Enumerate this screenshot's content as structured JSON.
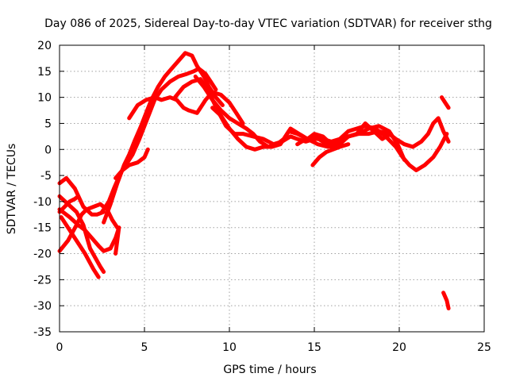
{
  "chart_data": {
    "type": "line",
    "title": "Day 086 of 2025, Sidereal Day-to-day VTEC variation (SDTVAR) for receiver sthg",
    "xlabel": "GPS time / hours",
    "ylabel": "SDTVAR / TECUs",
    "xlim": [
      0,
      25
    ],
    "ylim": [
      -35,
      20
    ],
    "xticks": [
      "0",
      "5",
      "10",
      "15",
      "20",
      "25"
    ],
    "yticks": [
      "20",
      "15",
      "10",
      "5",
      "0",
      "-5",
      "-10",
      "-15",
      "-20",
      "-25",
      "-30",
      "-35"
    ],
    "grid": true,
    "legend": "none",
    "series_color": "#ff0000",
    "series": [
      {
        "name": "trace-1",
        "x": [
          0.0,
          0.4,
          0.9,
          1.4,
          1.9,
          2.2,
          2.6
        ],
        "y": [
          -6.5,
          -5.5,
          -7.5,
          -11.0,
          -12.5,
          -12.5,
          -12.0
        ]
      },
      {
        "name": "trace-2",
        "x": [
          0.0,
          0.5,
          1.0,
          1.4,
          1.8,
          2.4,
          2.6
        ],
        "y": [
          -9.0,
          -10.5,
          -12.0,
          -14.5,
          -19.0,
          -22.5,
          -23.5
        ]
      },
      {
        "name": "trace-3",
        "x": [
          0.1,
          0.5,
          1.0,
          1.5,
          2.0,
          2.3
        ],
        "y": [
          -13.0,
          -15.0,
          -17.5,
          -20.0,
          -23.0,
          -24.5
        ]
      },
      {
        "name": "trace-4",
        "x": [
          0.0,
          0.5,
          1.0,
          1.3,
          1.6,
          2.0,
          2.4,
          2.8,
          3.1,
          3.4
        ],
        "y": [
          -19.5,
          -17.5,
          -14.5,
          -12.5,
          -11.5,
          -11.0,
          -10.5,
          -11.5,
          -13.5,
          -15.0
        ]
      },
      {
        "name": "trace-5",
        "x": [
          0.0,
          0.6,
          1.1,
          1.5,
          1.9,
          2.3,
          2.6,
          3.0,
          3.3,
          3.5
        ],
        "y": [
          -11.5,
          -13.0,
          -14.5,
          -15.5,
          -17.0,
          -18.5,
          -19.5,
          -19.0,
          -17.0,
          -15.0
        ]
      },
      {
        "name": "trace-6",
        "x": [
          0.0,
          0.3,
          0.6,
          0.9,
          1.1
        ],
        "y": [
          -12.0,
          -11.0,
          -10.0,
          -9.5,
          -9.0
        ]
      },
      {
        "name": "trace-7",
        "x": [
          2.5,
          2.9,
          3.2,
          3.6,
          3.9,
          4.3,
          4.7,
          5.0,
          5.3,
          5.6,
          6.0,
          6.5,
          7.0,
          7.5,
          7.9,
          8.2,
          8.6,
          8.9,
          9.2
        ],
        "y": [
          -12.0,
          -10.0,
          -7.5,
          -4.5,
          -3.0,
          -1.0,
          2.0,
          4.5,
          7.0,
          9.5,
          11.5,
          13.0,
          14.0,
          14.5,
          15.0,
          15.5,
          14.5,
          13.0,
          11.5
        ]
      },
      {
        "name": "trace-8",
        "x": [
          2.6,
          3.0,
          3.4,
          3.8,
          4.1,
          4.4,
          4.8,
          5.1,
          5.4,
          5.8,
          6.2,
          6.6,
          7.0,
          7.4,
          7.8,
          8.1,
          8.5,
          8.8,
          9.2,
          9.6
        ],
        "y": [
          -14.0,
          -10.5,
          -6.5,
          -3.0,
          -1.0,
          1.5,
          4.5,
          7.0,
          9.5,
          12.0,
          14.0,
          15.5,
          17.0,
          18.5,
          18.0,
          16.0,
          14.0,
          12.0,
          10.0,
          8.5
        ]
      },
      {
        "name": "trace-9",
        "x": [
          4.1,
          4.6,
          5.1,
          5.6,
          6.0,
          6.5,
          6.9,
          7.3,
          7.6,
          8.1,
          8.6,
          9.0,
          9.5,
          10.0,
          10.4,
          10.8
        ],
        "y": [
          6.0,
          8.5,
          9.5,
          10.0,
          9.5,
          10.0,
          9.5,
          8.0,
          7.5,
          7.0,
          9.5,
          11.0,
          10.5,
          9.0,
          7.0,
          5.0
        ]
      },
      {
        "name": "trace-10",
        "x": [
          3.3,
          3.7,
          4.1,
          4.6,
          5.0,
          5.2
        ],
        "y": [
          -5.5,
          -4.0,
          -3.0,
          -2.5,
          -1.5,
          0.0
        ]
      },
      {
        "name": "trace-11",
        "x": [
          3.3,
          3.5
        ],
        "y": [
          -20.0,
          -15.0
        ]
      },
      {
        "name": "trace-12",
        "x": [
          6.8,
          7.3,
          7.8,
          8.3,
          8.8,
          9.3,
          9.8,
          10.3,
          10.8,
          11.4,
          12.0,
          12.6,
          13.1,
          13.6,
          14.0,
          14.5,
          15.0,
          15.5,
          16.0,
          16.5,
          17.0,
          17.6,
          18.2,
          18.8,
          19.4,
          19.8,
          20.3,
          20.8
        ],
        "y": [
          10.0,
          12.0,
          13.0,
          13.5,
          11.0,
          7.5,
          4.5,
          3.0,
          3.0,
          2.5,
          2.0,
          1.0,
          1.5,
          2.5,
          2.0,
          1.5,
          2.0,
          2.0,
          1.5,
          2.0,
          2.5,
          3.0,
          3.0,
          3.5,
          3.0,
          2.0,
          1.0,
          0.5
        ]
      },
      {
        "name": "trace-13",
        "x": [
          8.0,
          8.5,
          9.0,
          9.5,
          10.0,
          10.5,
          11.0,
          11.4,
          11.8,
          12.3,
          12.8,
          13.2,
          13.6,
          14.1,
          14.6,
          15.0,
          15.5,
          16.0,
          16.5,
          17.0,
          17.5,
          18.0,
          18.6,
          19.2,
          19.8,
          20.2,
          20.6,
          21.0,
          21.5,
          22.0,
          22.4,
          22.8
        ],
        "y": [
          14.0,
          12.0,
          9.5,
          7.5,
          6.0,
          5.0,
          4.0,
          3.0,
          1.5,
          0.5,
          1.0,
          2.0,
          4.0,
          3.0,
          2.0,
          3.0,
          2.5,
          1.0,
          2.0,
          3.5,
          4.0,
          4.5,
          4.0,
          2.5,
          0.5,
          -1.5,
          -3.0,
          -4.0,
          -3.0,
          -1.5,
          0.5,
          3.0
        ]
      },
      {
        "name": "trace-14",
        "x": [
          9.0,
          9.5,
          10.0,
          10.5,
          11.0,
          11.5,
          12.0,
          12.5,
          13.0,
          13.5,
          14.0,
          14.6,
          15.2,
          15.8,
          16.4,
          17.0,
          17.6,
          18.2,
          18.8,
          19.4,
          19.9,
          20.3
        ],
        "y": [
          8.0,
          6.5,
          4.0,
          2.0,
          0.5,
          0.0,
          0.5,
          0.5,
          1.0,
          3.5,
          3.0,
          2.0,
          1.0,
          0.5,
          1.0,
          2.5,
          3.0,
          4.0,
          4.5,
          3.5,
          1.0,
          -2.0
        ]
      },
      {
        "name": "trace-15",
        "x": [
          14.0,
          14.5,
          15.0,
          15.5,
          16.0,
          16.5,
          17.0,
          17.5,
          18.0,
          18.5,
          19.0,
          19.5
        ],
        "y": [
          1.0,
          2.0,
          2.5,
          1.5,
          0.5,
          1.0,
          2.5,
          3.0,
          5.0,
          3.5,
          2.0,
          3.0
        ]
      },
      {
        "name": "trace-16",
        "x": [
          14.9,
          15.3,
          15.7,
          16.1,
          16.5,
          17.0
        ],
        "y": [
          -3.0,
          -1.5,
          -0.5,
          0.0,
          0.5,
          1.0
        ]
      },
      {
        "name": "trace-17",
        "x": [
          20.8,
          21.3,
          21.7,
          22.0,
          22.3,
          22.6,
          22.9
        ],
        "y": [
          0.5,
          1.5,
          3.0,
          5.0,
          6.0,
          3.5,
          1.5
        ]
      },
      {
        "name": "trace-18",
        "x": [
          22.5,
          22.7,
          22.9
        ],
        "y": [
          10.0,
          9.0,
          8.0
        ]
      },
      {
        "name": "trace-19",
        "x": [
          22.6,
          22.8,
          22.9
        ],
        "y": [
          -27.5,
          -29.0,
          -30.5
        ]
      }
    ]
  }
}
